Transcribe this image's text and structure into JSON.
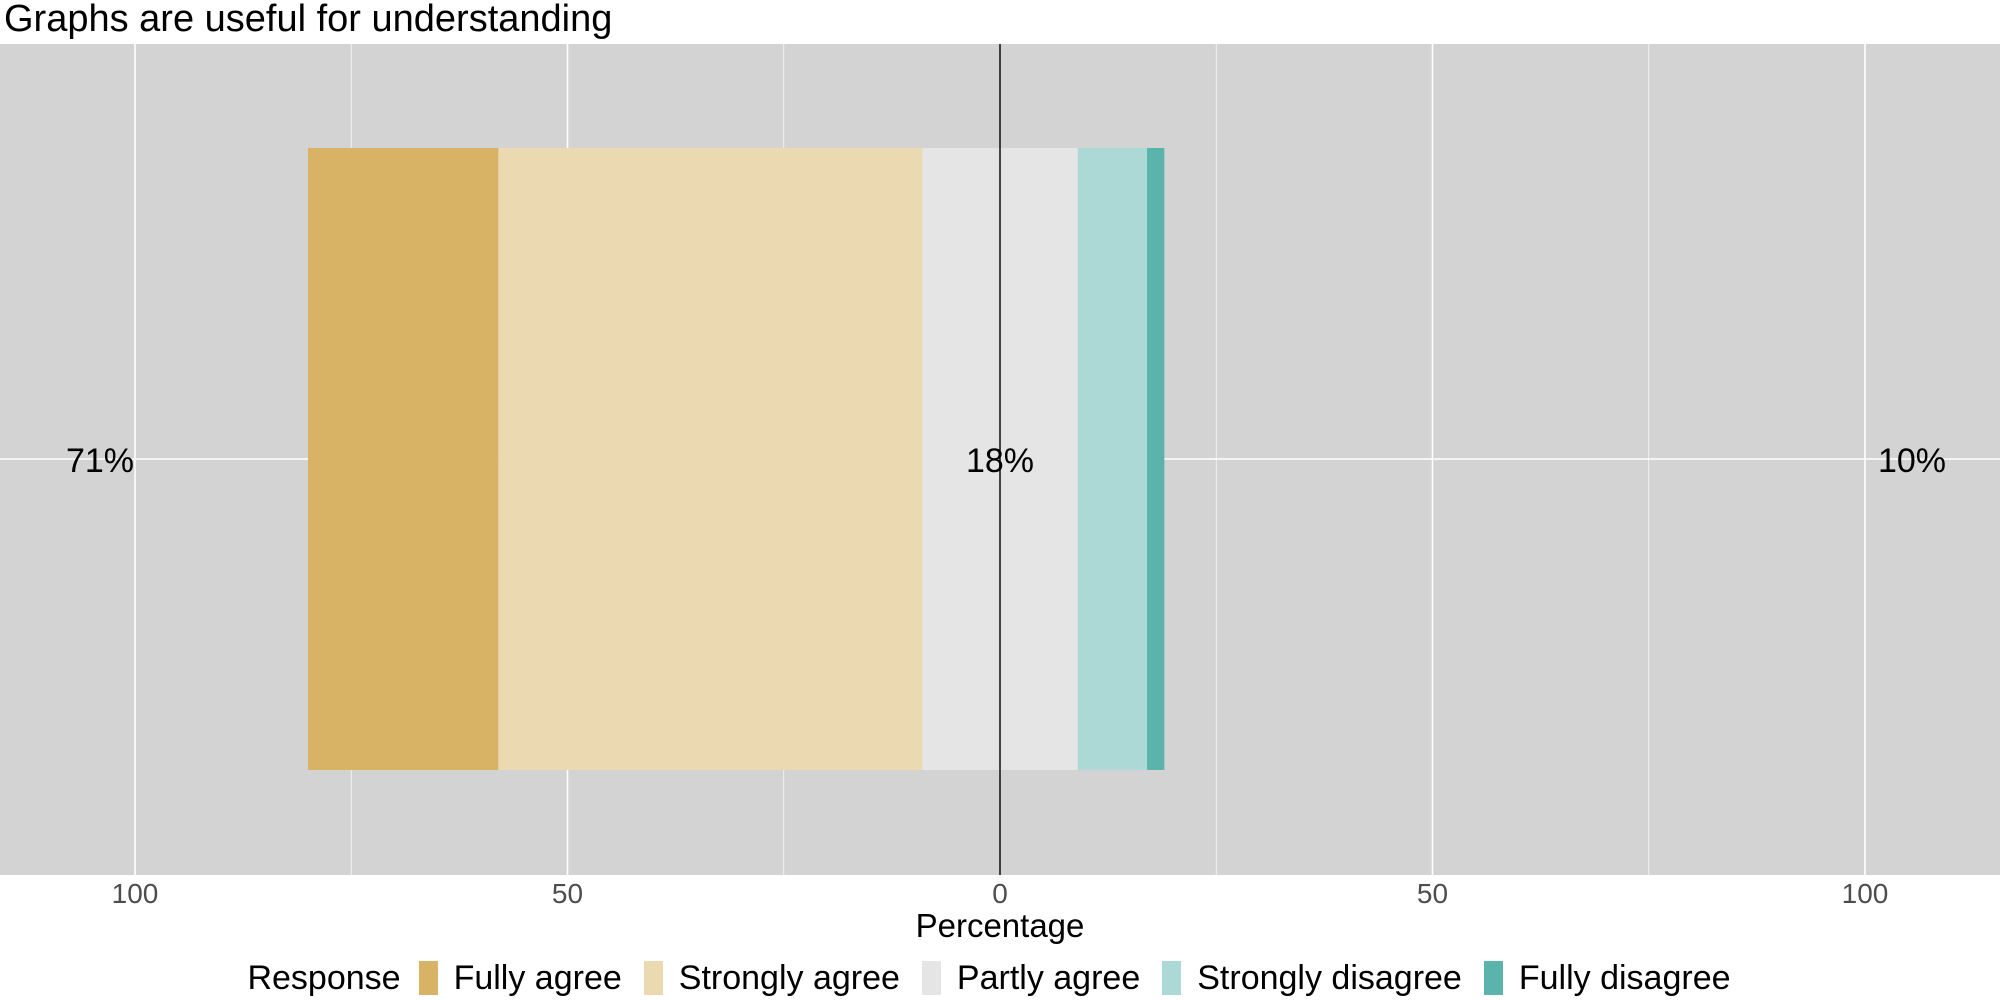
{
  "chart_data": {
    "type": "bar",
    "title": "Graphs are useful for understanding",
    "xlabel": "Percentage",
    "orientation": "horizontal diverging",
    "xlim": [
      -112,
      115
    ],
    "x_ticks": [
      -100,
      -50,
      0,
      50,
      100
    ],
    "x_tick_labels": [
      "100",
      "50",
      "0",
      "50",
      "100"
    ],
    "grid": true,
    "legend": {
      "title": "Response",
      "position": "bottom"
    },
    "series": [
      {
        "name": "Fully agree",
        "value": 22,
        "color": "#D8B365"
      },
      {
        "name": "Strongly agree",
        "value": 49,
        "color": "#EBD9B2"
      },
      {
        "name": "Partly agree",
        "value": 18,
        "color": "#E5E5E5"
      },
      {
        "name": "Strongly disagree",
        "value": 8,
        "color": "#ACD9D5"
      },
      {
        "name": "Fully disagree",
        "value": 2,
        "color": "#5AB4AC"
      }
    ],
    "summary_labels": {
      "left": "71%",
      "center": "18%",
      "right": "10%"
    }
  }
}
